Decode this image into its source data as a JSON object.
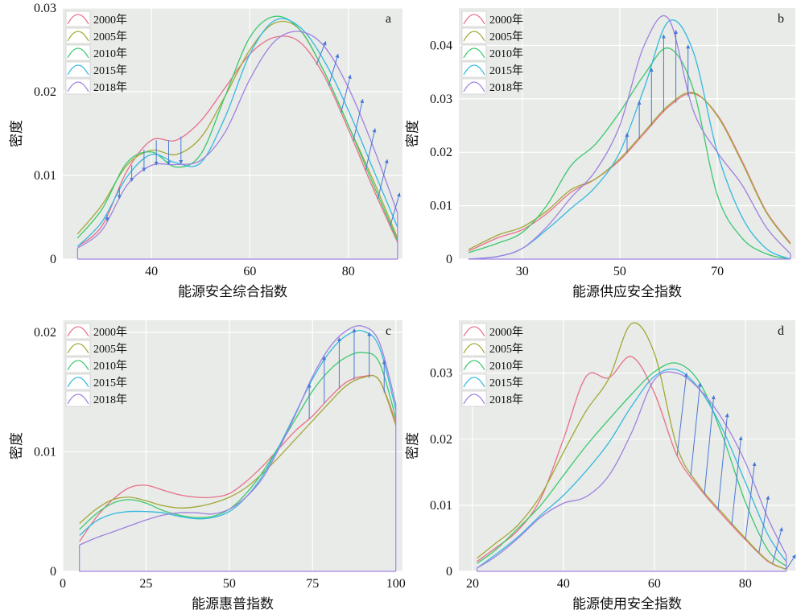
{
  "legend_labels": [
    "2000年",
    "2005年",
    "2010年",
    "2015年",
    "2018年"
  ],
  "colors": {
    "2000年": "#e8708a",
    "2005年": "#a3a836",
    "2010年": "#3cc86e",
    "2015年": "#35b8e0",
    "2018年": "#a080e0",
    "arrow": "#4a78d8",
    "panel_bg": "#e8ebe8",
    "grid": "#ffffff",
    "baseline": "#a080e0"
  },
  "chart_data": [
    {
      "type": "line",
      "panel": "a",
      "xlabel": "能源安全综合指数",
      "ylabel": "密度",
      "xlim": [
        22,
        91
      ],
      "ylim": [
        0,
        0.03
      ],
      "xticks": [
        40,
        60,
        80
      ],
      "xtick_labels": [
        "40",
        "60",
        "80"
      ],
      "yticks": [
        0,
        0.01,
        0.02,
        0.03
      ],
      "ytick_labels": [
        "0",
        "0.01",
        "0.02",
        "0.03"
      ],
      "legend_position": "top-left",
      "series": [
        {
          "name": "2000年",
          "x": [
            25,
            30,
            35,
            40,
            45,
            50,
            55,
            60,
            65,
            70,
            75,
            80,
            85,
            90
          ],
          "y": [
            0.0015,
            0.004,
            0.0105,
            0.0142,
            0.0142,
            0.0165,
            0.0205,
            0.0245,
            0.0265,
            0.026,
            0.022,
            0.0155,
            0.0085,
            0.002
          ]
        },
        {
          "name": "2005年",
          "x": [
            25,
            30,
            35,
            40,
            45,
            50,
            55,
            60,
            65,
            70,
            75,
            80,
            85,
            90
          ],
          "y": [
            0.003,
            0.0065,
            0.0112,
            0.013,
            0.0125,
            0.0145,
            0.0195,
            0.025,
            0.0282,
            0.0275,
            0.0225,
            0.016,
            0.0095,
            0.0025
          ]
        },
        {
          "name": "2010年",
          "x": [
            25,
            30,
            35,
            40,
            45,
            50,
            55,
            60,
            65,
            70,
            75,
            80,
            85,
            90
          ],
          "y": [
            0.0025,
            0.006,
            0.0115,
            0.0128,
            0.011,
            0.0125,
            0.0195,
            0.0265,
            0.029,
            0.0275,
            0.0225,
            0.016,
            0.009,
            0.0022
          ]
        },
        {
          "name": "2015年",
          "x": [
            25,
            30,
            35,
            40,
            45,
            50,
            55,
            60,
            65,
            70,
            75,
            80,
            85,
            90
          ],
          "y": [
            0.0015,
            0.0045,
            0.0098,
            0.0125,
            0.0115,
            0.0115,
            0.017,
            0.0245,
            0.0285,
            0.0278,
            0.0238,
            0.0178,
            0.0108,
            0.0038
          ]
        },
        {
          "name": "2018年",
          "x": [
            25,
            30,
            35,
            40,
            45,
            50,
            55,
            60,
            65,
            70,
            75,
            80,
            85,
            90
          ],
          "y": [
            0.0013,
            0.0035,
            0.0088,
            0.0112,
            0.0113,
            0.0118,
            0.0152,
            0.0215,
            0.026,
            0.0272,
            0.0255,
            0.0205,
            0.0135,
            0.0055
          ]
        }
      ],
      "arrows": {
        "from": "2000年",
        "to": "2018年",
        "x": [
          31,
          33.5,
          36,
          38.5,
          41,
          43.5,
          46,
          73.5,
          76,
          78.5,
          81,
          83.5,
          86,
          88.5
        ]
      }
    },
    {
      "type": "line",
      "panel": "b",
      "xlabel": "能源供应安全指数",
      "ylabel": "密度",
      "xlim": [
        17,
        86
      ],
      "ylim": [
        0,
        0.047
      ],
      "xticks": [
        30,
        50,
        70
      ],
      "xtick_labels": [
        "30",
        "50",
        "70"
      ],
      "yticks": [
        0,
        0.01,
        0.02,
        0.03,
        0.04
      ],
      "ytick_labels": [
        "0",
        "0.01",
        "0.02",
        "0.03",
        "0.04"
      ],
      "legend_position": "top-left",
      "series": [
        {
          "name": "2000年",
          "x": [
            19,
            25,
            30,
            35,
            40,
            45,
            50,
            55,
            60,
            65,
            70,
            75,
            80,
            85
          ],
          "y": [
            0.0015,
            0.004,
            0.0055,
            0.0085,
            0.0125,
            0.015,
            0.0185,
            0.0235,
            0.0285,
            0.031,
            0.027,
            0.0185,
            0.009,
            0.003
          ]
        },
        {
          "name": "2005年",
          "x": [
            19,
            25,
            30,
            35,
            40,
            45,
            50,
            55,
            60,
            65,
            70,
            75,
            80,
            85
          ],
          "y": [
            0.0018,
            0.0045,
            0.006,
            0.009,
            0.013,
            0.015,
            0.0188,
            0.0238,
            0.0288,
            0.0312,
            0.0268,
            0.0182,
            0.0088,
            0.0028
          ]
        },
        {
          "name": "2010年",
          "x": [
            19,
            25,
            30,
            35,
            40,
            45,
            50,
            55,
            60,
            65,
            70,
            75,
            80,
            85
          ],
          "y": [
            0.0012,
            0.003,
            0.005,
            0.01,
            0.0175,
            0.0215,
            0.0275,
            0.0345,
            0.0395,
            0.032,
            0.012,
            0.004,
            0.001,
            0
          ]
        },
        {
          "name": "2015年",
          "x": [
            19,
            25,
            30,
            35,
            40,
            45,
            50,
            55,
            60,
            65,
            70,
            75,
            80,
            85
          ],
          "y": [
            0,
            0.0005,
            0.002,
            0.0055,
            0.0095,
            0.0135,
            0.02,
            0.032,
            0.0445,
            0.039,
            0.02,
            0.008,
            0.002,
            0
          ]
        },
        {
          "name": "2018年",
          "x": [
            19,
            25,
            30,
            35,
            40,
            45,
            50,
            55,
            60,
            65,
            70,
            75,
            80,
            85
          ],
          "y": [
            0,
            0.0005,
            0.002,
            0.006,
            0.0115,
            0.0165,
            0.025,
            0.04,
            0.045,
            0.028,
            0.02,
            0.014,
            0.006,
            0.001
          ]
        }
      ],
      "arrows": {
        "from": "2000年",
        "to": "2015年",
        "x": [
          51.5,
          54,
          56.5,
          59,
          61.5,
          64
        ]
      }
    },
    {
      "type": "line",
      "panel": "c",
      "xlabel": "能源惠普指数",
      "ylabel": "密度",
      "xlim": [
        0,
        102
      ],
      "ylim": [
        0,
        0.021
      ],
      "xticks": [
        0,
        25,
        50,
        75,
        100
      ],
      "xtick_labels": [
        "0",
        "25",
        "50",
        "75",
        "100"
      ],
      "yticks": [
        0,
        0.01,
        0.02
      ],
      "ytick_labels": [
        "0",
        "0.01",
        "0.02"
      ],
      "legend_position": "top-left",
      "series": [
        {
          "name": "2000年",
          "x": [
            5,
            10,
            15,
            20,
            25,
            30,
            35,
            40,
            45,
            50,
            55,
            60,
            65,
            70,
            75,
            80,
            85,
            90,
            95,
            100
          ],
          "y": [
            0.0025,
            0.0045,
            0.006,
            0.007,
            0.0072,
            0.0068,
            0.0064,
            0.0062,
            0.0062,
            0.0065,
            0.0075,
            0.0088,
            0.0103,
            0.0118,
            0.013,
            0.0145,
            0.0158,
            0.0163,
            0.016,
            0.0125
          ]
        },
        {
          "name": "2005年",
          "x": [
            5,
            10,
            15,
            20,
            25,
            30,
            35,
            40,
            45,
            50,
            55,
            60,
            65,
            70,
            75,
            80,
            85,
            90,
            95,
            100
          ],
          "y": [
            0.004,
            0.0052,
            0.006,
            0.0062,
            0.0059,
            0.0055,
            0.0053,
            0.0054,
            0.0057,
            0.0062,
            0.007,
            0.0082,
            0.0096,
            0.0111,
            0.0126,
            0.0141,
            0.0155,
            0.0162,
            0.016,
            0.0122
          ]
        },
        {
          "name": "2010年",
          "x": [
            5,
            10,
            15,
            20,
            25,
            30,
            35,
            40,
            45,
            50,
            55,
            60,
            65,
            70,
            75,
            80,
            85,
            90,
            95,
            100
          ],
          "y": [
            0.0035,
            0.0048,
            0.0057,
            0.006,
            0.0057,
            0.0051,
            0.0047,
            0.0045,
            0.0046,
            0.0052,
            0.0065,
            0.0083,
            0.0105,
            0.0128,
            0.0151,
            0.0168,
            0.0179,
            0.0183,
            0.0175,
            0.0128
          ]
        },
        {
          "name": "2015年",
          "x": [
            5,
            10,
            15,
            20,
            25,
            30,
            35,
            40,
            45,
            50,
            55,
            60,
            65,
            70,
            75,
            80,
            85,
            90,
            95,
            100
          ],
          "y": [
            0.003,
            0.0042,
            0.0048,
            0.005,
            0.005,
            0.0049,
            0.0046,
            0.0044,
            0.0045,
            0.005,
            0.0062,
            0.008,
            0.0105,
            0.0133,
            0.0161,
            0.0183,
            0.0197,
            0.0201,
            0.0188,
            0.0135
          ]
        },
        {
          "name": "2018年",
          "x": [
            5,
            10,
            15,
            20,
            25,
            30,
            35,
            40,
            45,
            50,
            55,
            60,
            65,
            70,
            75,
            80,
            85,
            90,
            95,
            100
          ],
          "y": [
            0.0022,
            0.0028,
            0.0033,
            0.0038,
            0.0043,
            0.0047,
            0.0049,
            0.0049,
            0.0048,
            0.0052,
            0.0062,
            0.0078,
            0.0103,
            0.0132,
            0.0163,
            0.0187,
            0.0201,
            0.0205,
            0.0192,
            0.014
          ]
        }
      ],
      "arrows": {
        "from": "2000年",
        "to": "2018年",
        "x": [
          74,
          78.5,
          83,
          87.5,
          92,
          96.5
        ]
      }
    },
    {
      "type": "line",
      "panel": "d",
      "xlabel": "能源使用安全指数",
      "ylabel": "密度",
      "xlim": [
        17,
        91
      ],
      "ylim": [
        0,
        0.038
      ],
      "xticks": [
        20,
        40,
        60,
        80
      ],
      "xtick_labels": [
        "20",
        "40",
        "60",
        "80"
      ],
      "yticks": [
        0,
        0.01,
        0.02,
        0.03
      ],
      "ytick_labels": [
        "0",
        "0.01",
        "0.02",
        "0.03"
      ],
      "legend_position": "top-left",
      "series": [
        {
          "name": "2000年",
          "x": [
            21,
            25,
            30,
            35,
            40,
            45,
            50,
            55,
            60,
            65,
            70,
            75,
            80,
            85,
            89
          ],
          "y": [
            0.0015,
            0.0035,
            0.0062,
            0.011,
            0.02,
            0.0295,
            0.0293,
            0.0325,
            0.027,
            0.0175,
            0.0125,
            0.0085,
            0.0048,
            0.0015,
            0.0003
          ]
        },
        {
          "name": "2005年",
          "x": [
            21,
            25,
            30,
            35,
            40,
            45,
            50,
            55,
            60,
            65,
            70,
            75,
            80,
            85,
            89
          ],
          "y": [
            0.002,
            0.0042,
            0.007,
            0.0115,
            0.018,
            0.0243,
            0.0292,
            0.0375,
            0.033,
            0.0188,
            0.0128,
            0.0088,
            0.005,
            0.0016,
            0.0003
          ]
        },
        {
          "name": "2010年",
          "x": [
            21,
            25,
            30,
            35,
            40,
            45,
            50,
            55,
            60,
            65,
            70,
            75,
            80,
            85,
            89
          ],
          "y": [
            0.0012,
            0.0032,
            0.0065,
            0.01,
            0.0145,
            0.019,
            0.023,
            0.0268,
            0.0302,
            0.0315,
            0.0285,
            0.0205,
            0.0105,
            0.0032,
            0.0008
          ]
        },
        {
          "name": "2015年",
          "x": [
            21,
            25,
            30,
            35,
            40,
            45,
            50,
            55,
            60,
            65,
            70,
            75,
            80,
            85,
            89
          ],
          "y": [
            0.0005,
            0.0025,
            0.0052,
            0.0085,
            0.0115,
            0.0152,
            0.0195,
            0.025,
            0.0295,
            0.0305,
            0.0275,
            0.0215,
            0.0135,
            0.0055,
            0.0015
          ]
        },
        {
          "name": "2018年",
          "x": [
            21,
            25,
            30,
            35,
            40,
            45,
            50,
            55,
            60,
            65,
            70,
            75,
            80,
            85,
            89
          ],
          "y": [
            0.0005,
            0.0022,
            0.005,
            0.0082,
            0.0103,
            0.0113,
            0.0145,
            0.021,
            0.029,
            0.03,
            0.0275,
            0.023,
            0.0165,
            0.008,
            0.0025
          ]
        }
      ],
      "arrows": {
        "from": "2000年",
        "to": "2018年",
        "x": [
          65,
          68,
          71,
          74,
          77,
          80,
          83,
          86,
          89
        ]
      }
    }
  ]
}
